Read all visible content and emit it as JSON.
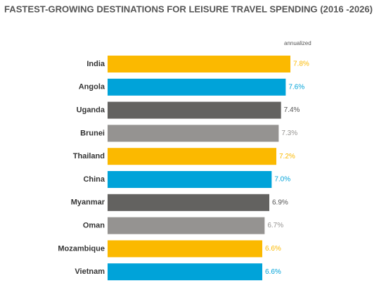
{
  "chart_data": {
    "type": "bar",
    "orientation": "horizontal",
    "title": "FASTEST-GROWING DESTINATIONS FOR LEISURE TRAVEL SPENDING (2016 -2026)",
    "annotation": "annualized",
    "categories": [
      "India",
      "Angola",
      "Uganda",
      "Brunei",
      "Thailand",
      "China",
      "Myanmar",
      "Oman",
      "Mozambique",
      "Vietnam"
    ],
    "values": [
      7.8,
      7.6,
      7.4,
      7.3,
      7.2,
      7.0,
      6.9,
      6.7,
      6.6,
      6.6
    ],
    "value_labels": [
      "7.8%",
      "7.6%",
      "7.4%",
      "7.3%",
      "7.2%",
      "7.0%",
      "6.9%",
      "6.7%",
      "6.6%",
      "6.6%"
    ],
    "colors": [
      "#fbb900",
      "#00a3d9",
      "#636260",
      "#959391",
      "#fbb900",
      "#00a3d9",
      "#636260",
      "#959391",
      "#fbb900",
      "#00a3d9"
    ]
  }
}
